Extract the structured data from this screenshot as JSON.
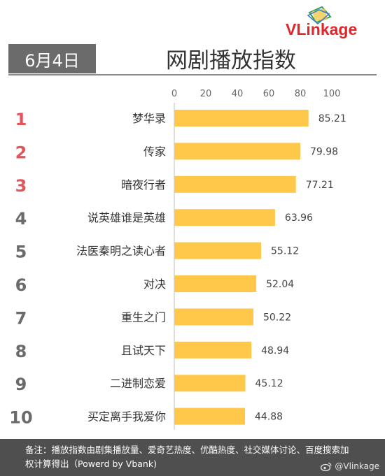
{
  "header": {
    "date": "6月4日",
    "title": "网剧播放指数",
    "logo_text": "VLinkage"
  },
  "chart_data": {
    "type": "bar",
    "orientation": "horizontal",
    "title": "网剧播放指数",
    "xlim": [
      0,
      100
    ],
    "x_ticks": [
      "0",
      "20",
      "40",
      "60",
      "80",
      "100"
    ],
    "ranks": [
      "1",
      "2",
      "3",
      "4",
      "5",
      "6",
      "7",
      "8",
      "9",
      "10"
    ],
    "categories": [
      "梦华录",
      "传家",
      "暗夜行者",
      "说英雄谁是英雄",
      "法医秦明之读心者",
      "对决",
      "重生之门",
      "且试天下",
      "二进制恋爱",
      "买定离手我爱你"
    ],
    "values": [
      85.21,
      79.98,
      77.21,
      63.96,
      55.12,
      52.04,
      50.22,
      48.94,
      45.12,
      44.88
    ],
    "value_labels": [
      "85.21",
      "79.98",
      "77.21",
      "63.96",
      "55.12",
      "52.04",
      "50.22",
      "48.94",
      "45.12",
      "44.88"
    ],
    "bar_color": "#ffc84a",
    "top_rank_color": "#e2555b",
    "rank_color": "#6b6b6b",
    "grid": false
  },
  "footer": {
    "note": "备注：播放指数由剧集播放量、爱奇艺热度、优酷热度、社交媒体讨论、百度搜索加权计算得出（Powerd by Vbank)",
    "watermark": "@Vlinkage"
  }
}
